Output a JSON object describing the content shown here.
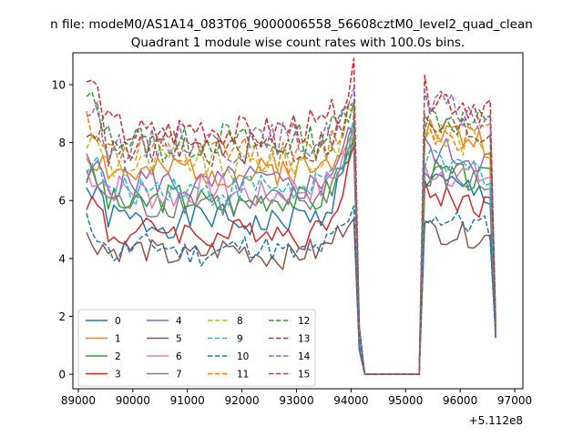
{
  "chart_data": {
    "type": "line",
    "suptitle": "n file: modeM0/AS1A14_083T06_9000006558_56608cztM0_level2_quad_clean",
    "title": "Quadrant 1 module wise count rates with 100.0s bins.",
    "xlabel": "",
    "ylabel": "",
    "offset_label": "+5.112e8",
    "xlim": [
      88900,
      97150
    ],
    "ylim": [
      -0.5,
      11.1
    ],
    "xticks": [
      89000,
      90000,
      91000,
      92000,
      93000,
      94000,
      95000,
      96000,
      97000
    ],
    "yticks": [
      0,
      2,
      4,
      6,
      8,
      10
    ],
    "legend_position": "lower-left",
    "segments": [
      {
        "x_start": 89150,
        "x_end": 94050,
        "dx": 100,
        "points": 50
      },
      {
        "x_start": 95350,
        "x_end": 96550,
        "dx": 100,
        "points": 13
      }
    ],
    "gap": {
      "x_start": 94150,
      "x_end": 95250,
      "level": 0
    },
    "series": [
      {
        "name": "0",
        "color": "#1f77b4",
        "dash": "solid",
        "first": 6.4,
        "body": 5.3,
        "peak": 8.2,
        "second": 6.7,
        "end": 1.25
      },
      {
        "name": "1",
        "color": "#ff7f0e",
        "dash": "solid",
        "first": 7.6,
        "body": 7.0,
        "peak": 9.0,
        "second": 8.5,
        "end": 1.5
      },
      {
        "name": "2",
        "color": "#2ca02c",
        "dash": "solid",
        "first": 6.9,
        "body": 6.0,
        "peak": 8.0,
        "second": 7.0,
        "end": 1.6
      },
      {
        "name": "3",
        "color": "#d62728",
        "dash": "solid",
        "first": 6.1,
        "body": 4.9,
        "peak": 7.9,
        "second": 6.3,
        "end": 1.3
      },
      {
        "name": "4",
        "color": "#9467bd",
        "dash": "solid",
        "first": 7.2,
        "body": 6.6,
        "peak": 8.6,
        "second": 7.8,
        "end": 1.5
      },
      {
        "name": "5",
        "color": "#8c564b",
        "dash": "solid",
        "first": 4.7,
        "body": 4.2,
        "peak": 5.8,
        "second": 5.0,
        "end": 1.3
      },
      {
        "name": "6",
        "color": "#e377c2",
        "dash": "solid",
        "first": 7.0,
        "body": 6.3,
        "peak": 8.3,
        "second": 7.1,
        "end": 1.4
      },
      {
        "name": "7",
        "color": "#7f7f7f",
        "dash": "solid",
        "first": 6.8,
        "body": 5.9,
        "peak": 8.7,
        "second": 6.9,
        "end": 1.4
      },
      {
        "name": "8",
        "color": "#bcbd22",
        "dash": "dashed",
        "first": 8.1,
        "body": 7.3,
        "peak": 9.2,
        "second": 8.3,
        "end": 1.6
      },
      {
        "name": "9",
        "color": "#17becf",
        "dash": "dashed",
        "first": 7.4,
        "body": 6.4,
        "peak": 8.4,
        "second": 7.3,
        "end": 1.5
      },
      {
        "name": "10",
        "color": "#1f77b4",
        "dash": "dashed",
        "first": 5.2,
        "body": 4.3,
        "peak": 5.6,
        "second": 5.5,
        "end": 1.3
      },
      {
        "name": "11",
        "color": "#ff7f0e",
        "dash": "dashed",
        "first": 8.8,
        "body": 7.6,
        "peak": 9.4,
        "second": 8.5,
        "end": 1.7
      },
      {
        "name": "12",
        "color": "#2ca02c",
        "dash": "dashed",
        "first": 9.5,
        "body": 8.0,
        "peak": 9.7,
        "second": 8.9,
        "end": 1.8
      },
      {
        "name": "13",
        "color": "#d62728",
        "dash": "dashed",
        "first": 10.2,
        "body": 8.4,
        "peak": 10.3,
        "second": 9.7,
        "end": 1.9
      },
      {
        "name": "14",
        "color": "#9467bd",
        "dash": "dashed",
        "first": 9.2,
        "body": 8.0,
        "peak": 9.6,
        "second": 9.3,
        "end": 1.7
      },
      {
        "name": "15",
        "color": "#8c564b",
        "dash": "dashed",
        "first": 8.7,
        "body": 7.8,
        "peak": 9.3,
        "second": 8.6,
        "end": 1.6
      }
    ]
  }
}
